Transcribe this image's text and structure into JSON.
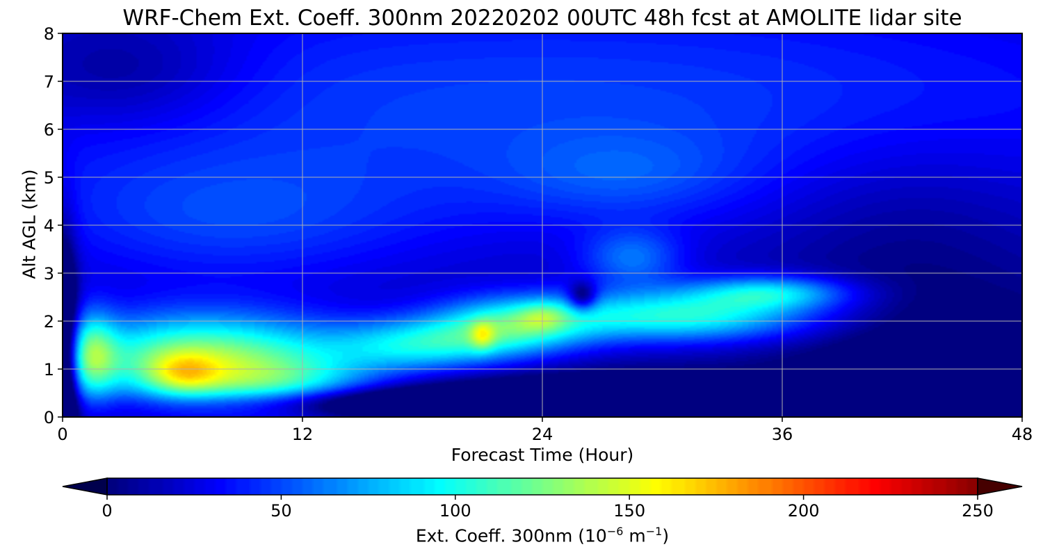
{
  "chart_data": {
    "type": "heatmap",
    "title": "WRF-Chem Ext. Coeff. 300nm  20220202 00UTC 48h fcst at AMOLITE lidar site",
    "xlabel": "Forecast Time (Hour)",
    "ylabel": "Alt AGL (km)",
    "xlim": [
      0,
      48
    ],
    "ylim": [
      0,
      8
    ],
    "xticks": [
      "0",
      "12",
      "24",
      "36",
      "48"
    ],
    "yticks": [
      "0",
      "1",
      "2",
      "3",
      "4",
      "5",
      "6",
      "7",
      "8"
    ],
    "grid": true,
    "colorbar": {
      "label_main": "Ext. Coeff. 300nm  (10",
      "label_exp1": "−6",
      "label_mid": " m",
      "label_exp2": "−1",
      "label_end": ")",
      "range": [
        0,
        250
      ],
      "ticks": [
        "0",
        "50",
        "100",
        "150",
        "200",
        "250"
      ],
      "colormap": "jet",
      "extend": "both"
    },
    "features": [
      {
        "x": 24,
        "y": 6.5,
        "sx": 40,
        "sy": 3.0,
        "value": 40
      },
      {
        "x": 28,
        "y": 5.0,
        "sx": 6,
        "sy": 0.9,
        "value": 18
      },
      {
        "x": 8,
        "y": 4.0,
        "sx": 10,
        "sy": 1.4,
        "value": 25
      },
      {
        "x": 7,
        "y": 1.2,
        "sx": 7,
        "sy": 0.95,
        "value": 120
      },
      {
        "x": 6,
        "y": 0.9,
        "sx": 1.8,
        "sy": 0.45,
        "value": 45
      },
      {
        "x": 11,
        "y": 0.6,
        "sx": 5,
        "sy": 0.6,
        "value": 50
      },
      {
        "x": 18,
        "y": 1.5,
        "sx": 4.5,
        "sy": 0.55,
        "value": 70
      },
      {
        "x": 22.5,
        "y": 1.9,
        "sx": 4,
        "sy": 0.6,
        "value": 80
      },
      {
        "x": 21,
        "y": 1.7,
        "sx": 0.6,
        "sy": 0.3,
        "value": 40
      },
      {
        "x": 24,
        "y": 2.1,
        "sx": 1.2,
        "sy": 0.3,
        "value": 30
      },
      {
        "x": 31,
        "y": 2.1,
        "sx": 7,
        "sy": 0.55,
        "value": 90
      },
      {
        "x": 35.5,
        "y": 2.6,
        "sx": 4,
        "sy": 0.35,
        "value": 65
      },
      {
        "x": 28.5,
        "y": 3.3,
        "sx": 2.5,
        "sy": 0.6,
        "value": 40
      },
      {
        "x": 1.5,
        "y": 1.3,
        "sx": 1.2,
        "sy": 0.9,
        "value": 65
      },
      {
        "x": 16,
        "y": 0.3,
        "sx": 9,
        "sy": 0.3,
        "value": -60
      },
      {
        "x": 26,
        "y": 0.5,
        "sx": 10,
        "sy": 0.45,
        "value": -30
      },
      {
        "x": 44,
        "y": 1.0,
        "sx": 8,
        "sy": 1.4,
        "value": -25
      },
      {
        "x": 0,
        "y": 1.0,
        "sx": 0.7,
        "sy": 2.5,
        "value": -100
      },
      {
        "x": 42,
        "y": 4.0,
        "sx": 7,
        "sy": 2.0,
        "value": -15
      },
      {
        "x": 3,
        "y": 7.2,
        "sx": 6,
        "sy": 1.2,
        "value": -25
      },
      {
        "x": 26,
        "y": 2.5,
        "sx": 0.7,
        "sy": 0.3,
        "value": -55
      }
    ]
  }
}
